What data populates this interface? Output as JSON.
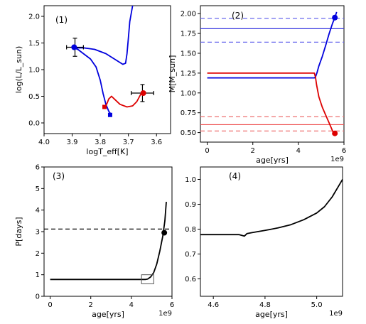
{
  "chart_data": [
    {
      "type": "line",
      "panel_label": "(1)",
      "xlabel": "logT_eff[K]",
      "ylabel": "log(L/L_sun)",
      "xlim": [
        4.0,
        3.55
      ],
      "ylim": [
        -0.2,
        2.2
      ],
      "xticks": [
        "4.0",
        "3.9",
        "3.8",
        "3.7",
        "3.6"
      ],
      "yticks": [
        "0.0",
        "0.5",
        "1.0",
        "1.5",
        "2.0"
      ],
      "series": [
        {
          "color": "#0000dd",
          "points": [
            [
              3.76,
              0.15
            ],
            [
              3.77,
              0.22
            ],
            [
              3.78,
              0.35
            ],
            [
              3.79,
              0.55
            ],
            [
              3.8,
              0.8
            ],
            [
              3.815,
              1.05
            ],
            [
              3.835,
              1.2
            ],
            [
              3.86,
              1.3
            ],
            [
              3.88,
              1.38
            ],
            [
              3.895,
              1.41
            ],
            [
              3.86,
              1.41
            ],
            [
              3.82,
              1.38
            ],
            [
              3.78,
              1.3
            ],
            [
              3.75,
              1.2
            ],
            [
              3.72,
              1.1
            ],
            [
              3.71,
              1.12
            ],
            [
              3.705,
              1.3
            ],
            [
              3.7,
              1.6
            ],
            [
              3.695,
              1.9
            ],
            [
              3.685,
              2.2
            ]
          ]
        },
        {
          "color": "#dd0000",
          "points": [
            [
              3.785,
              0.3
            ],
            [
              3.78,
              0.32
            ],
            [
              3.775,
              0.38
            ],
            [
              3.77,
              0.45
            ],
            [
              3.76,
              0.5
            ],
            [
              3.75,
              0.45
            ],
            [
              3.73,
              0.35
            ],
            [
              3.705,
              0.3
            ],
            [
              3.685,
              0.32
            ],
            [
              3.67,
              0.4
            ],
            [
              3.66,
              0.5
            ],
            [
              3.655,
              0.55
            ],
            [
              3.645,
              0.56
            ]
          ]
        }
      ],
      "markers": [
        {
          "x": 3.893,
          "y": 1.42,
          "shape": "circle",
          "color": "#0000dd"
        },
        {
          "x": 3.765,
          "y": 0.15,
          "shape": "square",
          "color": "#0000dd"
        },
        {
          "x": 3.785,
          "y": 0.3,
          "shape": "square",
          "color": "#dd0000"
        },
        {
          "x": 3.647,
          "y": 0.56,
          "shape": "circle",
          "color": "#dd0000"
        }
      ],
      "errorbars": [
        {
          "x": 3.89,
          "y": 1.42,
          "xerr": 0.03,
          "yerr": 0.17,
          "color": "#000000"
        },
        {
          "x": 3.65,
          "y": 0.56,
          "xerr": 0.04,
          "yerr": 0.16,
          "color": "#000000"
        }
      ]
    },
    {
      "type": "line",
      "panel_label": "(2)",
      "xlabel": "age[yrs]",
      "ylabel": "M[M_sun]",
      "offset_label": "1e9",
      "xlim": [
        -0.3,
        6.0
      ],
      "ylim": [
        0.38,
        2.1
      ],
      "xticks": [
        "0",
        "2",
        "4",
        "6"
      ],
      "yticks": [
        "0.50",
        "0.75",
        "1.00",
        "1.25",
        "1.50",
        "1.75",
        "2.00"
      ],
      "hlines": [
        {
          "y": 1.94,
          "color": "#6a6aee",
          "dash": true
        },
        {
          "y": 1.81,
          "color": "#3838e0",
          "dash": false
        },
        {
          "y": 1.64,
          "color": "#6a6aee",
          "dash": true
        },
        {
          "y": 0.7,
          "color": "#ee7070",
          "dash": true
        },
        {
          "y": 0.6,
          "color": "#ee5050",
          "dash": false
        },
        {
          "y": 0.52,
          "color": "#ee7070",
          "dash": true
        }
      ],
      "series": [
        {
          "color": "#0000dd",
          "points": [
            [
              0,
              1.19
            ],
            [
              4.7,
              1.19
            ],
            [
              4.75,
              1.2
            ],
            [
              4.82,
              1.26
            ],
            [
              4.9,
              1.34
            ],
            [
              5.05,
              1.46
            ],
            [
              5.2,
              1.6
            ],
            [
              5.35,
              1.75
            ],
            [
              5.5,
              1.88
            ],
            [
              5.6,
              1.95
            ],
            [
              5.68,
              2.02
            ]
          ]
        },
        {
          "color": "#dd0000",
          "points": [
            [
              0,
              1.25
            ],
            [
              4.7,
              1.25
            ],
            [
              4.75,
              1.2
            ],
            [
              4.8,
              1.1
            ],
            [
              4.9,
              0.95
            ],
            [
              5.05,
              0.82
            ],
            [
              5.2,
              0.72
            ],
            [
              5.35,
              0.62
            ],
            [
              5.5,
              0.52
            ],
            [
              5.6,
              0.48
            ]
          ]
        }
      ],
      "markers": [
        {
          "x": 5.6,
          "y": 1.95,
          "shape": "circle",
          "color": "#0000dd"
        },
        {
          "x": 5.6,
          "y": 0.49,
          "shape": "circle",
          "color": "#dd0000"
        }
      ]
    },
    {
      "type": "line",
      "panel_label": "(3)",
      "xlabel": "age[yrs]",
      "ylabel": "P[days]",
      "offset_label": "1e9",
      "xlim": [
        -0.3,
        6.0
      ],
      "ylim": [
        0,
        6
      ],
      "xticks": [
        "0",
        "2",
        "4",
        "6"
      ],
      "yticks": [
        "0",
        "1",
        "2",
        "3",
        "4",
        "5",
        "6"
      ],
      "hlines": [
        {
          "y": 3.12,
          "color": "#000000",
          "dash": true
        }
      ],
      "series": [
        {
          "color": "#000000",
          "points": [
            [
              0,
              0.78
            ],
            [
              4.7,
              0.78
            ],
            [
              4.8,
              0.8
            ],
            [
              4.95,
              0.9
            ],
            [
              5.1,
              1.1
            ],
            [
              5.25,
              1.5
            ],
            [
              5.4,
              2.1
            ],
            [
              5.55,
              2.8
            ],
            [
              5.65,
              3.5
            ],
            [
              5.72,
              4.38
            ]
          ]
        }
      ],
      "markers": [
        {
          "x": 5.62,
          "y": 2.95,
          "shape": "circle",
          "color": "#000000"
        }
      ],
      "rect": {
        "x0": 4.5,
        "x1": 5.1,
        "y0": 0.58,
        "y1": 1.0
      }
    },
    {
      "type": "line",
      "panel_label": "(4)",
      "xlabel": "age[yrs]",
      "ylabel": "",
      "offset_label": "1e9",
      "xlim": [
        4.55,
        5.1
      ],
      "ylim": [
        0.53,
        1.05
      ],
      "xticks": [
        "4.6",
        "4.8",
        "5.0"
      ],
      "yticks": [
        "0.6",
        "0.7",
        "0.8",
        "0.9",
        "1.0"
      ],
      "series": [
        {
          "color": "#000000",
          "points": [
            [
              4.55,
              0.778
            ],
            [
              4.7,
              0.778
            ],
            [
              4.72,
              0.772
            ],
            [
              4.73,
              0.782
            ],
            [
              4.75,
              0.786
            ],
            [
              4.8,
              0.795
            ],
            [
              4.85,
              0.805
            ],
            [
              4.9,
              0.818
            ],
            [
              4.95,
              0.838
            ],
            [
              5.0,
              0.865
            ],
            [
              5.03,
              0.89
            ],
            [
              5.06,
              0.93
            ],
            [
              5.08,
              0.965
            ],
            [
              5.1,
              1.0
            ]
          ]
        }
      ]
    }
  ]
}
